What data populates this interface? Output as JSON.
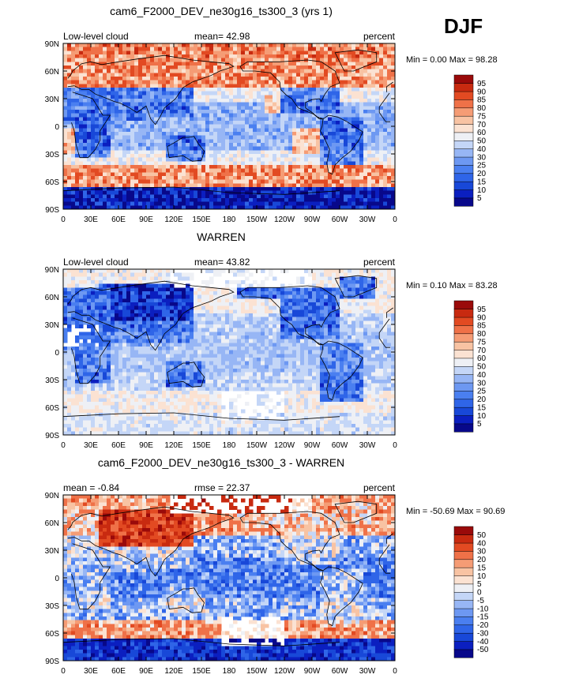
{
  "season_label": "DJF",
  "chart_data": [
    {
      "type": "heatmap",
      "title": "cam6_F2000_DEV_ne30g16_ts300_3 (yrs 1)",
      "left_label": "Low-level cloud",
      "center_label": "mean=  42.98",
      "right_label": "percent",
      "minmax_label": "Min =    0.00 Max =  98.28",
      "min": 0.0,
      "max": 98.28,
      "mean": 42.98,
      "x_ticks": [
        "0",
        "30E",
        "60E",
        "90E",
        "120E",
        "150E",
        "180",
        "150W",
        "120W",
        "90W",
        "60W",
        "30W",
        "0"
      ],
      "y_ticks": [
        "90N",
        "60N",
        "30N",
        "0",
        "30S",
        "60S",
        "90S"
      ],
      "colorbar_levels": [
        "5",
        "10",
        "15",
        "20",
        "25",
        "30",
        "40",
        "50",
        "60",
        "70",
        "75",
        "80",
        "85",
        "90",
        "95"
      ],
      "palette": [
        "#08088a",
        "#0b1fc0",
        "#1848d8",
        "#2f65e8",
        "#4a7ff0",
        "#6d98f2",
        "#97b6f5",
        "#c4d6f7",
        "#eef0f5",
        "#fbe2d2",
        "#f8c3a3",
        "#f59c75",
        "#ef7148",
        "#e24a22",
        "#c82a10",
        "#9a0a0a"
      ]
    },
    {
      "type": "heatmap",
      "title": "WARREN",
      "left_label": "Low-level cloud",
      "center_label": "mean=  43.82",
      "right_label": "percent",
      "minmax_label": "Min =    0.10 Max =  83.28",
      "min": 0.1,
      "max": 83.28,
      "mean": 43.82,
      "x_ticks": [
        "0",
        "30E",
        "60E",
        "90E",
        "120E",
        "150E",
        "180",
        "150W",
        "120W",
        "90W",
        "60W",
        "30W",
        "0"
      ],
      "y_ticks": [
        "90N",
        "60N",
        "30N",
        "0",
        "30S",
        "60S",
        "90S"
      ],
      "colorbar_levels": [
        "5",
        "10",
        "15",
        "20",
        "25",
        "30",
        "40",
        "50",
        "60",
        "70",
        "75",
        "80",
        "85",
        "90",
        "95"
      ],
      "palette": [
        "#08088a",
        "#0b1fc0",
        "#1848d8",
        "#2f65e8",
        "#4a7ff0",
        "#6d98f2",
        "#97b6f5",
        "#c4d6f7",
        "#eef0f5",
        "#fbe2d2",
        "#f8c3a3",
        "#f59c75",
        "#ef7148",
        "#e24a22",
        "#c82a10",
        "#9a0a0a"
      ]
    },
    {
      "type": "heatmap",
      "title": "cam6_F2000_DEV_ne30g16_ts300_3 - WARREN",
      "left_label": "mean =  -0.84",
      "center_label": "rmse =  22.37",
      "right_label": "percent",
      "minmax_label": "Min = -50.69 Max =  90.69",
      "min": -50.69,
      "max": 90.69,
      "mean": -0.84,
      "rmse": 22.37,
      "x_ticks": [
        "0",
        "30E",
        "60E",
        "90E",
        "120E",
        "150E",
        "180",
        "150W",
        "120W",
        "90W",
        "60W",
        "30W",
        "0"
      ],
      "y_ticks": [
        "90N",
        "60N",
        "30N",
        "0",
        "30S",
        "60S",
        "90S"
      ],
      "colorbar_levels": [
        "-50",
        "-40",
        "-30",
        "-20",
        "-15",
        "-10",
        "-5",
        "0",
        "5",
        "10",
        "15",
        "20",
        "30",
        "40",
        "50"
      ],
      "palette": [
        "#08088a",
        "#0b1fc0",
        "#1848d8",
        "#2f65e8",
        "#4a7ff0",
        "#6d98f2",
        "#97b6f5",
        "#c4d6f7",
        "#eef0f5",
        "#fbe2d2",
        "#f8c3a3",
        "#f59c75",
        "#ef7148",
        "#e24a22",
        "#c82a10",
        "#9a0a0a"
      ]
    }
  ]
}
